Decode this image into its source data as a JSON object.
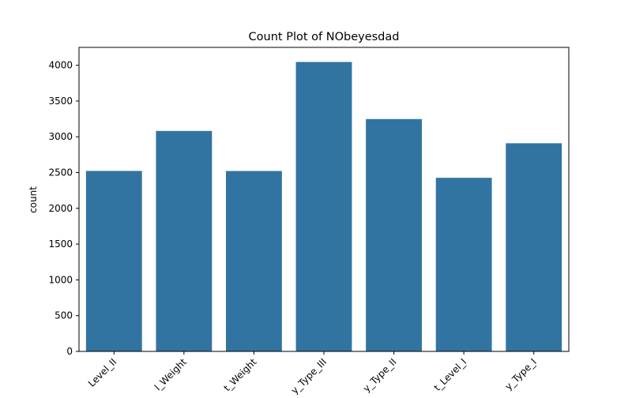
{
  "chart_data": {
    "type": "bar",
    "title": "Count Plot of NObeyesdad",
    "xlabel": "",
    "ylabel": "count",
    "categories": [
      "Level_II",
      "l_Weight",
      "t_Weight",
      "y_Type_III",
      "y_Type_II",
      "t_Level_I",
      "y_Type_I"
    ],
    "values": [
      2523,
      3082,
      2522,
      4046,
      3248,
      2427,
      2910
    ],
    "ylim": [
      0,
      4250
    ],
    "yticks": [
      0,
      500,
      1000,
      1500,
      2000,
      2500,
      3000,
      3500,
      4000
    ],
    "bar_color": "#3274a1",
    "grid": false,
    "legend": "none"
  }
}
